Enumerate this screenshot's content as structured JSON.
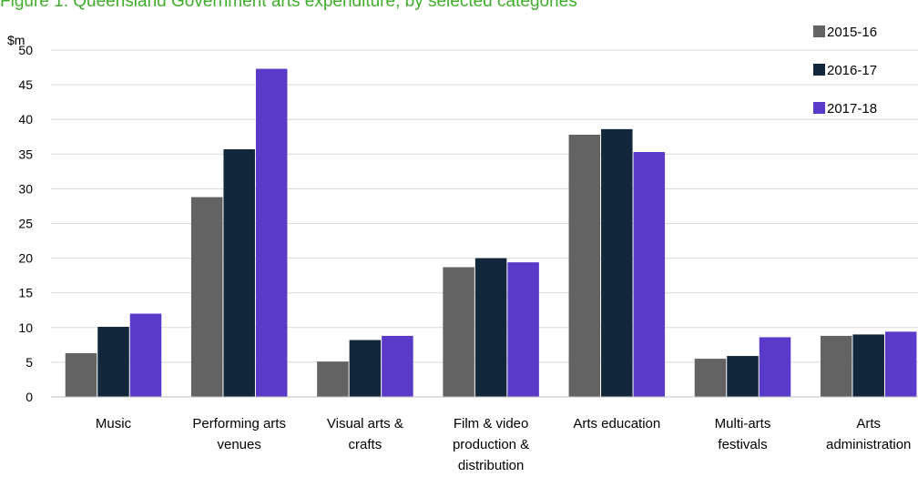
{
  "chart_data": {
    "type": "bar",
    "title": "Figure 1: Queensland Government arts expenditure, by selected categories",
    "ylabel": "$m",
    "xlabel": "",
    "ylim": [
      0,
      50
    ],
    "yticks": [
      "0",
      "5",
      "10",
      "15",
      "20",
      "25",
      "30",
      "35",
      "40",
      "45",
      "50"
    ],
    "grid": true,
    "legend_position": "top-right",
    "categories": [
      [
        "Music"
      ],
      [
        "Performing arts",
        "venues"
      ],
      [
        "Visual arts &",
        "crafts"
      ],
      [
        "Film & video",
        "production &",
        "distribution"
      ],
      [
        "Arts education"
      ],
      [
        "Multi-arts",
        "festivals"
      ],
      [
        "Arts",
        "administration"
      ]
    ],
    "series": [
      {
        "name": "2015-16",
        "color": "#636363",
        "values": [
          6.3,
          28.8,
          5.1,
          18.7,
          37.8,
          5.5,
          8.8
        ]
      },
      {
        "name": "2016-17",
        "color": "#12273b",
        "values": [
          10.1,
          35.7,
          8.2,
          20.0,
          38.6,
          5.9,
          9.0
        ]
      },
      {
        "name": "2017-18",
        "color": "#5a3bc9",
        "values": [
          12.0,
          47.3,
          8.8,
          19.4,
          35.3,
          8.6,
          9.4
        ]
      }
    ]
  }
}
